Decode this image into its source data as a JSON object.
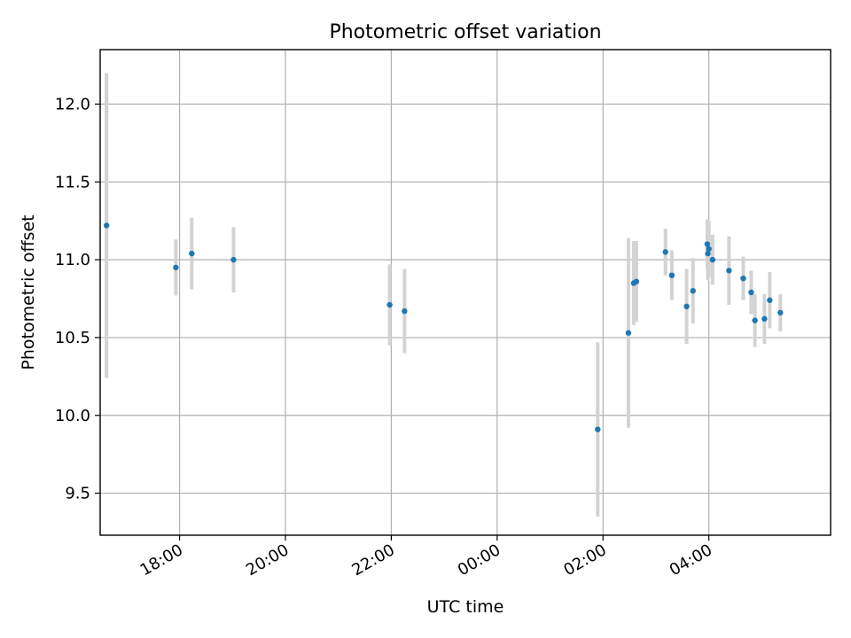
{
  "chart_data": {
    "type": "scatter",
    "title": "Photometric offset variation",
    "xlabel": "UTC time",
    "ylabel": "Photometric offset",
    "grid": true,
    "xlim": [
      16.5,
      30.3
    ],
    "ylim": [
      9.23,
      12.35
    ],
    "x_ticks": [
      {
        "value": 18,
        "label": "18:00"
      },
      {
        "value": 20,
        "label": "20:00"
      },
      {
        "value": 22,
        "label": "22:00"
      },
      {
        "value": 24,
        "label": "00:00"
      },
      {
        "value": 26,
        "label": "02:00"
      },
      {
        "value": 28,
        "label": "04:00"
      }
    ],
    "y_ticks": [
      {
        "value": 9.5,
        "label": "9.5"
      },
      {
        "value": 10.0,
        "label": "10.0"
      },
      {
        "value": 10.5,
        "label": "10.5"
      },
      {
        "value": 11.0,
        "label": "11.0"
      },
      {
        "value": 11.5,
        "label": "11.5"
      },
      {
        "value": 12.0,
        "label": "12.0"
      }
    ],
    "x_units": "hours since 00:00 UTC on the first day",
    "point_color": "#1f77b4",
    "errorbar_color": "#d3d3d3",
    "series": [
      {
        "name": "Photometric offset",
        "points": [
          {
            "x": 16.62,
            "y": 11.22,
            "err": 0.98
          },
          {
            "x": 17.93,
            "y": 10.95,
            "err": 0.18
          },
          {
            "x": 18.23,
            "y": 11.04,
            "err": 0.23
          },
          {
            "x": 19.02,
            "y": 11.0,
            "err": 0.21
          },
          {
            "x": 21.97,
            "y": 10.71,
            "err": 0.26
          },
          {
            "x": 22.25,
            "y": 10.67,
            "err": 0.27
          },
          {
            "x": 25.9,
            "y": 9.91,
            "err": 0.56
          },
          {
            "x": 26.48,
            "y": 10.53,
            "err": 0.61
          },
          {
            "x": 26.58,
            "y": 10.85,
            "err": 0.27
          },
          {
            "x": 26.63,
            "y": 10.86,
            "err": 0.26
          },
          {
            "x": 27.18,
            "y": 11.05,
            "err": 0.15
          },
          {
            "x": 27.3,
            "y": 10.9,
            "err": 0.16
          },
          {
            "x": 27.58,
            "y": 10.7,
            "err": 0.24
          },
          {
            "x": 27.7,
            "y": 10.8,
            "err": 0.21
          },
          {
            "x": 27.97,
            "y": 11.1,
            "err": 0.16
          },
          {
            "x": 27.98,
            "y": 11.04,
            "err": 0.17
          },
          {
            "x": 28.0,
            "y": 11.07,
            "err": 0.18
          },
          {
            "x": 28.07,
            "y": 11.0,
            "err": 0.16
          },
          {
            "x": 28.38,
            "y": 10.93,
            "err": 0.22
          },
          {
            "x": 28.65,
            "y": 10.88,
            "err": 0.14
          },
          {
            "x": 28.8,
            "y": 10.79,
            "err": 0.14
          },
          {
            "x": 28.87,
            "y": 10.61,
            "err": 0.17
          },
          {
            "x": 29.05,
            "y": 10.62,
            "err": 0.16
          },
          {
            "x": 29.15,
            "y": 10.74,
            "err": 0.18
          },
          {
            "x": 29.35,
            "y": 10.66,
            "err": 0.12
          }
        ]
      }
    ]
  }
}
